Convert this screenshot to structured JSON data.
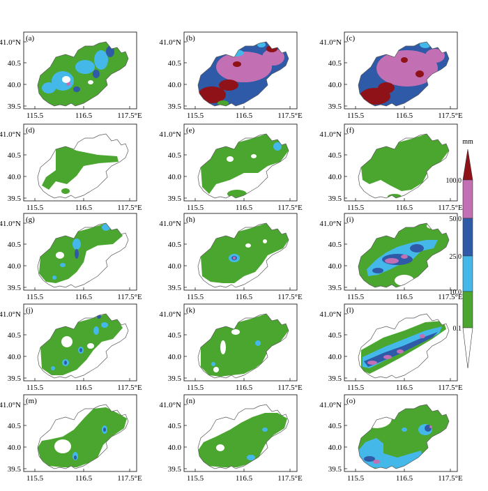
{
  "figure": {
    "x_tick_labels": [
      "115.5",
      "116.5",
      "117.5°E"
    ],
    "y_tick_labels": [
      "41.0°N",
      "40.5",
      "40.0",
      "39.5"
    ],
    "panels": [
      {
        "label": "(a)",
        "pattern": "a"
      },
      {
        "label": "(b)",
        "pattern": "b"
      },
      {
        "label": "(c)",
        "pattern": "c"
      },
      {
        "label": "(d)",
        "pattern": "d"
      },
      {
        "label": "(e)",
        "pattern": "e"
      },
      {
        "label": "(f)",
        "pattern": "f"
      },
      {
        "label": "(g)",
        "pattern": "g"
      },
      {
        "label": "(h)",
        "pattern": "h"
      },
      {
        "label": "(i)",
        "pattern": "i"
      },
      {
        "label": "(j)",
        "pattern": "j"
      },
      {
        "label": "(k)",
        "pattern": "k"
      },
      {
        "label": "(l)",
        "pattern": "l"
      },
      {
        "label": "(m)",
        "pattern": "m"
      },
      {
        "label": "(n)",
        "pattern": "n"
      },
      {
        "label": "(o)",
        "pattern": "o"
      }
    ]
  },
  "colorbar": {
    "unit": "mm",
    "levels": [
      "0.1",
      "10.0",
      "25.0",
      "50.0",
      "100.0"
    ],
    "colors": {
      "green": "#4aa62f",
      "cyan": "#44b8e8",
      "blue": "#2f5aa8",
      "pink": "#c26fb4",
      "darkred": "#8e1218"
    }
  }
}
